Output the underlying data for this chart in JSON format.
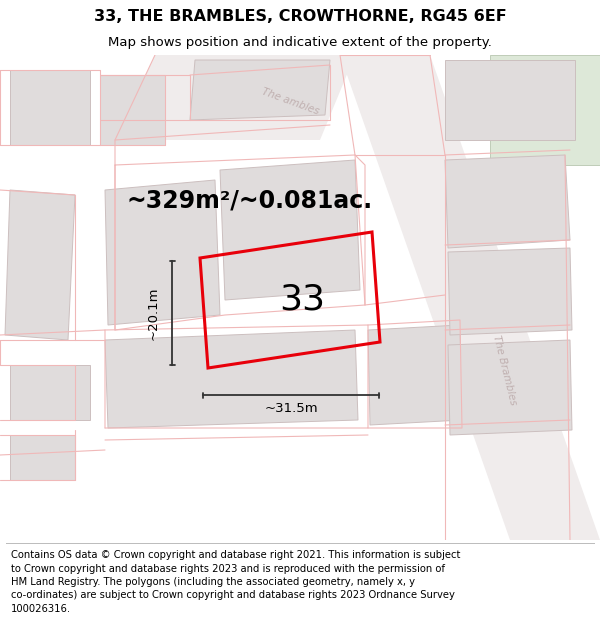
{
  "title": "33, THE BRAMBLES, CROWTHORNE, RG45 6EF",
  "subtitle": "Map shows position and indicative extent of the property.",
  "footer_lines": [
    "Contains OS data © Crown copyright and database right 2021. This information is subject",
    "to Crown copyright and database rights 2023 and is reproduced with the permission of",
    "HM Land Registry. The polygons (including the associated geometry, namely x, y",
    "co-ordinates) are subject to Crown copyright and database rights 2023 Ordnance Survey",
    "100026316."
  ],
  "area_text": "~329m²/~0.081ac.",
  "number_label": "33",
  "width_label": "~31.5m",
  "height_label": "~20.1m",
  "bg_color": "#ffffff",
  "map_bg": "#f8f6f6",
  "bld_fill": "#e0dcdc",
  "bld_edge": "#ccbfbf",
  "green_fill": "#dde8d8",
  "green_edge": "#bfccb8",
  "road_line": "#f0b8b8",
  "plot_stroke": "#e8000a",
  "dim_color": "#333333",
  "street_color": "#c0b0b0",
  "title_fontsize": 11.5,
  "subtitle_fontsize": 9.5,
  "footer_fontsize": 7.2,
  "area_fontsize": 17,
  "number_fontsize": 26,
  "dim_fontsize": 9.5,
  "street_fontsize": 7.5
}
